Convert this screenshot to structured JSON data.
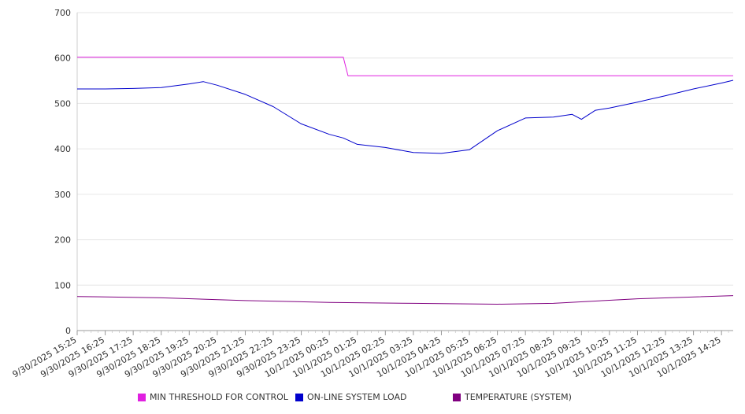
{
  "chart_data": {
    "type": "line",
    "title": "",
    "xlabel": "",
    "ylabel": "",
    "ylim": [
      0,
      700
    ],
    "yticks": [
      0,
      100,
      200,
      300,
      400,
      500,
      600,
      700
    ],
    "grid": true,
    "legend_position": "bottom",
    "xticks": [
      "9/30/2025 15:25",
      "9/30/2025 16:25",
      "9/30/2025 17:25",
      "9/30/2025 18:25",
      "9/30/2025 19:25",
      "9/30/2025 20:25",
      "9/30/2025 21:25",
      "9/30/2025 22:25",
      "9/30/2025 23:25",
      "10/1/2025 00:25",
      "10/1/2025 01:25",
      "10/1/2025 02:25",
      "10/1/2025 03:25",
      "10/1/2025 04:25",
      "10/1/2025 05:25",
      "10/1/2025 06:25",
      "10/1/2025 07:25",
      "10/1/2025 08:25",
      "10/1/2025 09:25",
      "10/1/2025 10:25",
      "10/1/2025 11:25",
      "10/1/2025 12:25",
      "10/1/2025 13:25",
      "10/1/2025 14:25"
    ],
    "series": [
      {
        "name": "MIN THRESHOLD FOR CONTROL",
        "color": "#e020e0",
        "points": [
          {
            "x": "9/30/2025 15:25",
            "y": 602
          },
          {
            "x": "10/1/2025 00:55",
            "y": 602
          },
          {
            "x": "10/1/2025 01:05",
            "y": 561
          },
          {
            "x": "10/1/2025 14:50",
            "y": 561
          }
        ]
      },
      {
        "name": "ON-LINE SYSTEM LOAD",
        "color": "#0000cc",
        "points": [
          {
            "x": "9/30/2025 15:25",
            "y": 532
          },
          {
            "x": "9/30/2025 16:25",
            "y": 532
          },
          {
            "x": "9/30/2025 17:25",
            "y": 533
          },
          {
            "x": "9/30/2025 18:25",
            "y": 535
          },
          {
            "x": "9/30/2025 19:25",
            "y": 543
          },
          {
            "x": "9/30/2025 19:55",
            "y": 548
          },
          {
            "x": "9/30/2025 20:25",
            "y": 540
          },
          {
            "x": "9/30/2025 21:25",
            "y": 520
          },
          {
            "x": "9/30/2025 22:25",
            "y": 493
          },
          {
            "x": "9/30/2025 23:25",
            "y": 455
          },
          {
            "x": "10/1/2025 00:25",
            "y": 432
          },
          {
            "x": "10/1/2025 00:55",
            "y": 424
          },
          {
            "x": "10/1/2025 01:25",
            "y": 410
          },
          {
            "x": "10/1/2025 02:25",
            "y": 403
          },
          {
            "x": "10/1/2025 03:25",
            "y": 392
          },
          {
            "x": "10/1/2025 04:25",
            "y": 390
          },
          {
            "x": "10/1/2025 05:25",
            "y": 398
          },
          {
            "x": "10/1/2025 06:25",
            "y": 440
          },
          {
            "x": "10/1/2025 07:25",
            "y": 468
          },
          {
            "x": "10/1/2025 08:25",
            "y": 470
          },
          {
            "x": "10/1/2025 09:05",
            "y": 476
          },
          {
            "x": "10/1/2025 09:25",
            "y": 465
          },
          {
            "x": "10/1/2025 09:55",
            "y": 485
          },
          {
            "x": "10/1/2025 10:25",
            "y": 490
          },
          {
            "x": "10/1/2025 11:25",
            "y": 503
          },
          {
            "x": "10/1/2025 12:25",
            "y": 517
          },
          {
            "x": "10/1/2025 13:25",
            "y": 532
          },
          {
            "x": "10/1/2025 14:25",
            "y": 545
          },
          {
            "x": "10/1/2025 14:50",
            "y": 551
          }
        ]
      },
      {
        "name": "TEMPERATURE (SYSTEM)",
        "color": "#800080",
        "points": [
          {
            "x": "9/30/2025 15:25",
            "y": 75
          },
          {
            "x": "9/30/2025 18:25",
            "y": 72
          },
          {
            "x": "9/30/2025 21:25",
            "y": 66
          },
          {
            "x": "10/1/2025 00:25",
            "y": 62
          },
          {
            "x": "10/1/2025 03:25",
            "y": 60
          },
          {
            "x": "10/1/2025 06:25",
            "y": 58
          },
          {
            "x": "10/1/2025 08:25",
            "y": 60
          },
          {
            "x": "10/1/2025 11:25",
            "y": 70
          },
          {
            "x": "10/1/2025 14:50",
            "y": 77
          }
        ]
      }
    ]
  }
}
